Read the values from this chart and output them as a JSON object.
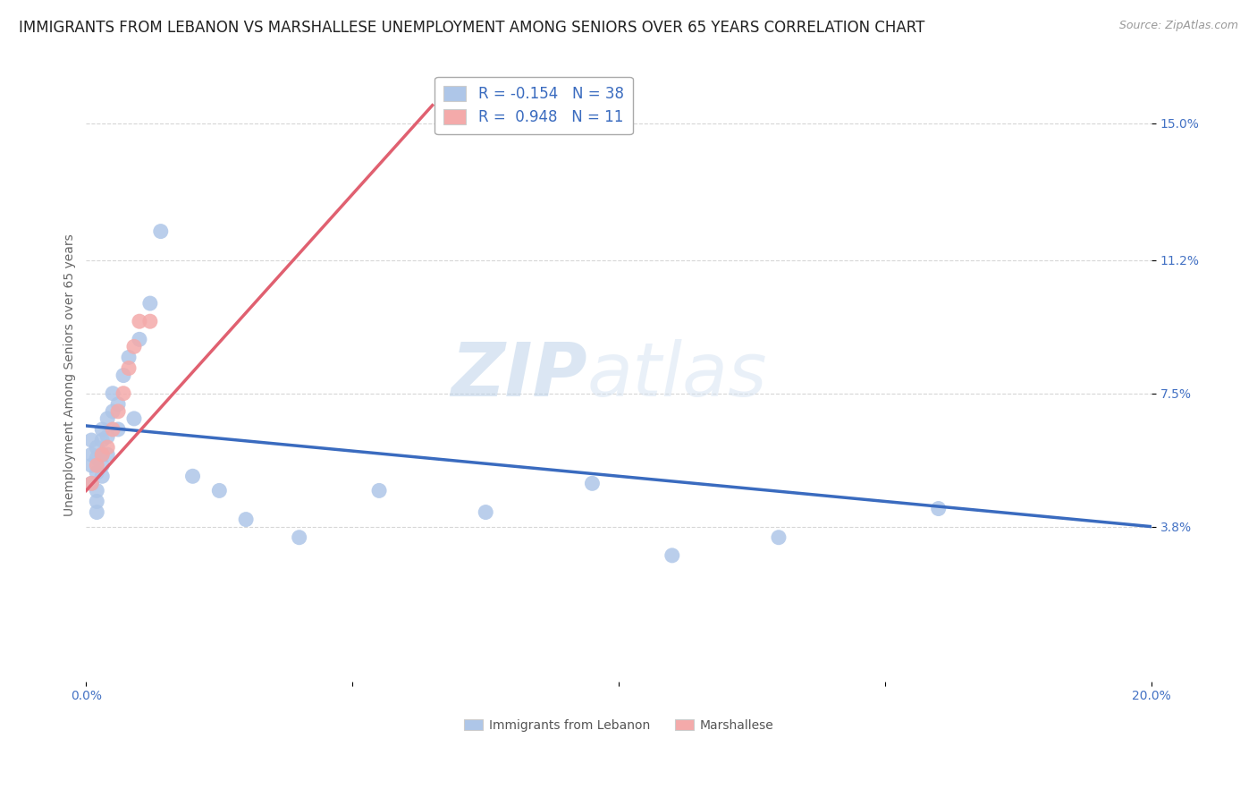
{
  "title": "IMMIGRANTS FROM LEBANON VS MARSHALLESE UNEMPLOYMENT AMONG SENIORS OVER 65 YEARS CORRELATION CHART",
  "source": "Source: ZipAtlas.com",
  "ylabel": "Unemployment Among Seniors over 65 years",
  "xlim": [
    0.0,
    0.2
  ],
  "ylim": [
    -0.005,
    0.165
  ],
  "ytick_positions": [
    0.038,
    0.075,
    0.112,
    0.15
  ],
  "ytick_labels": [
    "3.8%",
    "7.5%",
    "11.2%",
    "15.0%"
  ],
  "grid_color": "#cccccc",
  "background_color": "#ffffff",
  "watermark_zip": "ZIP",
  "watermark_atlas": "atlas",
  "lebanon_x": [
    0.001,
    0.001,
    0.001,
    0.001,
    0.002,
    0.002,
    0.002,
    0.002,
    0.002,
    0.002,
    0.003,
    0.003,
    0.003,
    0.003,
    0.003,
    0.004,
    0.004,
    0.004,
    0.005,
    0.005,
    0.006,
    0.006,
    0.007,
    0.008,
    0.009,
    0.01,
    0.012,
    0.014,
    0.02,
    0.025,
    0.03,
    0.04,
    0.055,
    0.075,
    0.095,
    0.11,
    0.13,
    0.16
  ],
  "lebanon_y": [
    0.062,
    0.058,
    0.055,
    0.05,
    0.06,
    0.057,
    0.053,
    0.048,
    0.045,
    0.042,
    0.065,
    0.062,
    0.058,
    0.055,
    0.052,
    0.068,
    0.063,
    0.058,
    0.075,
    0.07,
    0.072,
    0.065,
    0.08,
    0.085,
    0.068,
    0.09,
    0.1,
    0.12,
    0.052,
    0.048,
    0.04,
    0.035,
    0.048,
    0.042,
    0.05,
    0.03,
    0.035,
    0.043
  ],
  "marshallese_x": [
    0.001,
    0.002,
    0.003,
    0.004,
    0.005,
    0.006,
    0.007,
    0.008,
    0.009,
    0.01,
    0.012
  ],
  "marshallese_y": [
    0.05,
    0.055,
    0.058,
    0.06,
    0.065,
    0.07,
    0.075,
    0.082,
    0.088,
    0.095,
    0.095
  ],
  "lebanon_color": "#aec6e8",
  "marshallese_color": "#f4aaaa",
  "lebanon_line_color": "#3a6bbf",
  "marshallese_line_color": "#e06070",
  "leb_line_x0": 0.0,
  "leb_line_x1": 0.2,
  "leb_line_y0": 0.066,
  "leb_line_y1": 0.038,
  "mar_line_x0": 0.0,
  "mar_line_x1": 0.065,
  "mar_line_y0": 0.048,
  "mar_line_y1": 0.155,
  "R_lebanon": -0.154,
  "N_lebanon": 38,
  "R_marshallese": 0.948,
  "N_marshallese": 11,
  "legend_label_lebanon": "Immigrants from Lebanon",
  "legend_label_marshallese": "Marshallese",
  "title_fontsize": 12,
  "axis_label_fontsize": 10,
  "tick_fontsize": 10,
  "legend_fontsize": 12
}
